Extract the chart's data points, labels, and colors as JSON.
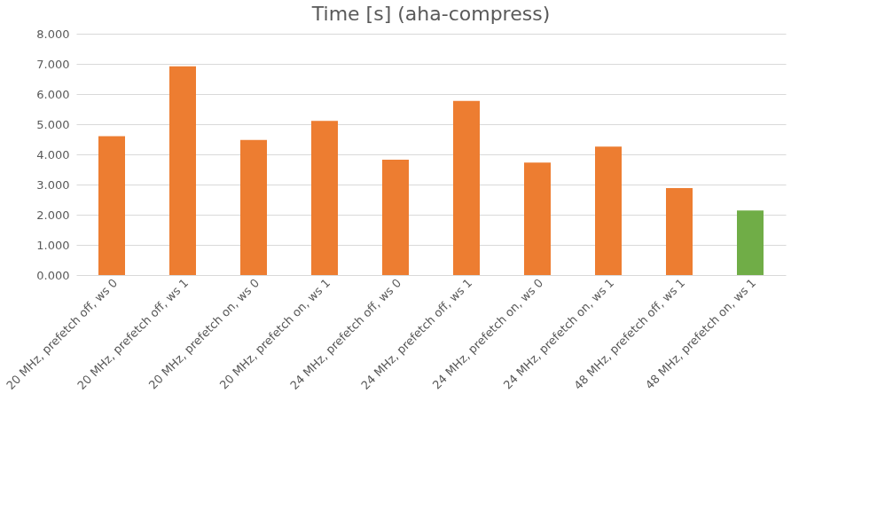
{
  "chart_data": {
    "type": "bar",
    "title": "Time [s] (aha-compress)",
    "categories": [
      "20 MHz, prefetch off, ws 0",
      "20 MHz, prefetch off, ws 1",
      "20 MHz, prefetch on, ws 0",
      "20 MHz, prefetch on, ws 1",
      "24 MHz, prefetch off, ws 0",
      "24 MHz, prefetch off, ws 1",
      "24 MHz, prefetch on, ws 0",
      "24 MHz, prefetch on, ws 1",
      "48 MHz, prefetch off, ws 1",
      "48 MHz, prefetch on, ws 1"
    ],
    "values": [
      4.6,
      6.92,
      4.48,
      5.11,
      3.82,
      5.77,
      3.73,
      4.26,
      2.88,
      2.14
    ],
    "colors": [
      "#ed7d31",
      "#ed7d31",
      "#ed7d31",
      "#ed7d31",
      "#ed7d31",
      "#ed7d31",
      "#ed7d31",
      "#ed7d31",
      "#ed7d31",
      "#70ad47"
    ],
    "ylim": [
      0,
      8
    ],
    "yticks": [
      {
        "value": 0,
        "label": "0.000"
      },
      {
        "value": 1,
        "label": "1.000"
      },
      {
        "value": 2,
        "label": "2.000"
      },
      {
        "value": 3,
        "label": "3.000"
      },
      {
        "value": 4,
        "label": "4.000"
      },
      {
        "value": 5,
        "label": "5.000"
      },
      {
        "value": 6,
        "label": "6.000"
      },
      {
        "value": 7,
        "label": "7.000"
      },
      {
        "value": 8,
        "label": "8.000"
      }
    ],
    "grid": "y",
    "legend": false
  }
}
